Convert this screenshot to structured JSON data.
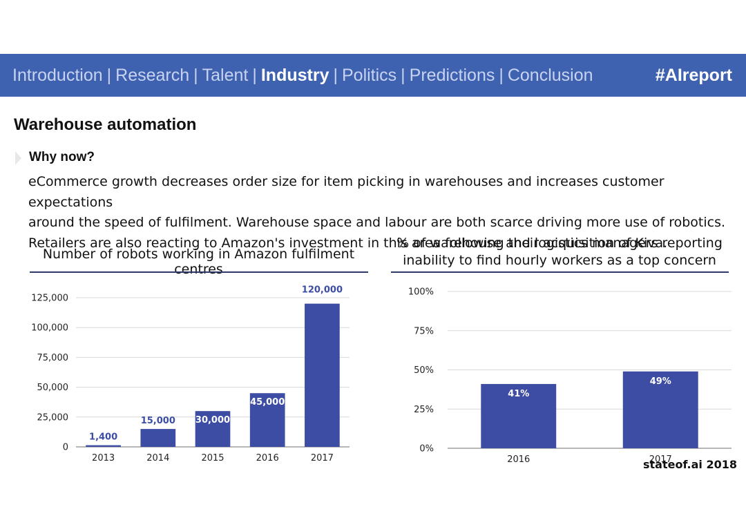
{
  "nav": {
    "items": [
      {
        "label": "Introduction",
        "active": false
      },
      {
        "label": "Research",
        "active": false
      },
      {
        "label": "Talent",
        "active": false
      },
      {
        "label": "Industry",
        "active": true
      },
      {
        "label": "Politics",
        "active": false
      },
      {
        "label": "Predictions",
        "active": false
      },
      {
        "label": "Conclusion",
        "active": false
      }
    ],
    "separator": "|",
    "hashtag": "#AIreport"
  },
  "page": {
    "title": "Warehouse automation",
    "subheading": "Why now?",
    "body_lines": [
      "eCommerce growth decreases order size for item picking in warehouses and increases customer expectations",
      "around the speed of fulfilment. Warehouse space and labour are both scarce driving more use of robotics.",
      "Retailers are also reacting to Amazon's investment in this area following their acquisition of Kiva."
    ],
    "credit": "stateof.ai 2018"
  },
  "colors": {
    "accent": "#3f62b0",
    "bar": "#3c4da3",
    "rule": "#2b3a67"
  },
  "chart_data": [
    {
      "type": "bar",
      "title": "Number of robots working in Amazon fulfilment centres",
      "categories": [
        "2013",
        "2014",
        "2015",
        "2016",
        "2017"
      ],
      "values": [
        1400,
        15000,
        30000,
        45000,
        120000
      ],
      "data_labels": [
        "1,400",
        "15,000",
        "30,000",
        "45,000",
        "120,000"
      ],
      "yticks": [
        "0",
        "25,000",
        "50,000",
        "75,000",
        "100,000",
        "125,000"
      ],
      "ytick_values": [
        0,
        25000,
        50000,
        75000,
        100000,
        125000
      ],
      "ylim": [
        0,
        125000
      ],
      "xlabel": "",
      "ylabel": "",
      "grid": true
    },
    {
      "type": "bar",
      "title": "% of warehouse and logistics managers reporting inability to find hourly workers as a top concern",
      "title_lines": [
        "% of warehouse and logistics managers reporting",
        "inability to find hourly workers as a top concern"
      ],
      "categories": [
        "2016",
        "2017"
      ],
      "values": [
        41,
        49
      ],
      "data_labels": [
        "41%",
        "49%"
      ],
      "yticks": [
        "0%",
        "25%",
        "50%",
        "75%",
        "100%"
      ],
      "ytick_values": [
        0,
        25,
        50,
        75,
        100
      ],
      "ylim": [
        0,
        100
      ],
      "xlabel": "",
      "ylabel": "",
      "grid": true
    }
  ]
}
